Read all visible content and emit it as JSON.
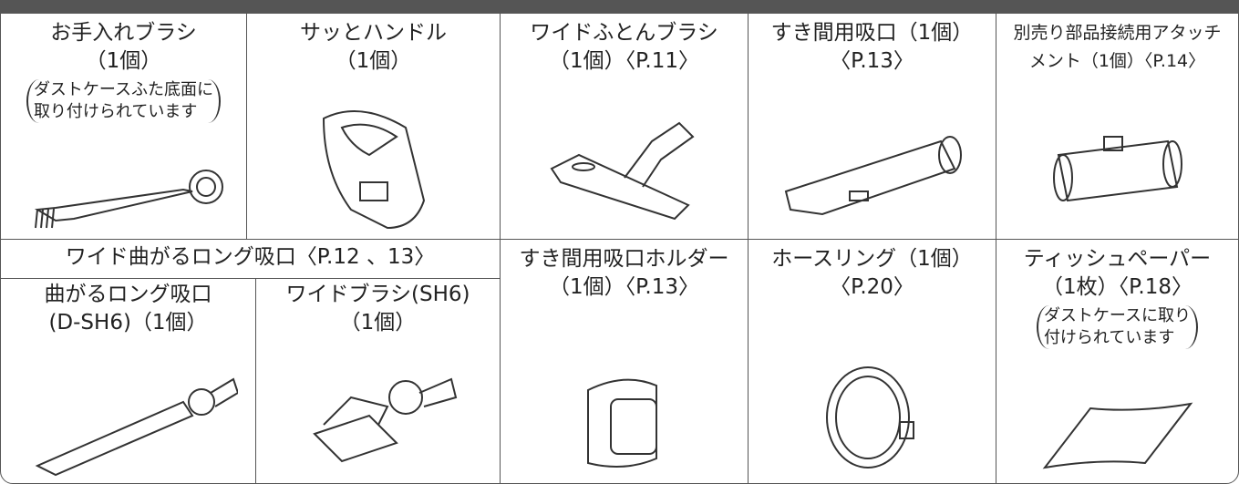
{
  "items_top": [
    {
      "name": [
        "お手入れブラシ",
        "（1個）"
      ],
      "note": [
        "ダストケースふた底面に",
        "取り付けられています"
      ]
    },
    {
      "name": [
        "サッとハンドル",
        "（1個）"
      ]
    },
    {
      "name": [
        "ワイドふとんブラシ",
        "（1個）〈P.11〉"
      ]
    },
    {
      "name": [
        "すき間用吸口（1個）",
        "〈P.13〉"
      ]
    },
    {
      "name": [
        "別売り部品接続用アタッチ",
        "メント（1個）〈P.14〉"
      ]
    }
  ],
  "group": {
    "title": "ワイド曲がるロング吸口〈P.12 、13〉",
    "items": [
      {
        "name": [
          "曲がるロング吸口",
          "(D-SH6)（1個）"
        ]
      },
      {
        "name": [
          "ワイドブラシ(SH6)",
          "（1個）"
        ]
      }
    ]
  },
  "items_bottom": [
    {
      "name": [
        "すき間用吸口ホルダー",
        "（1個）〈P.13〉"
      ]
    },
    {
      "name": [
        "ホースリング（1個）",
        "〈P.20〉"
      ]
    },
    {
      "name": [
        "ティッシュペーパー",
        "（1枚）〈P.18〉"
      ],
      "note": [
        "ダストケースに取り",
        "付けられています"
      ]
    }
  ]
}
